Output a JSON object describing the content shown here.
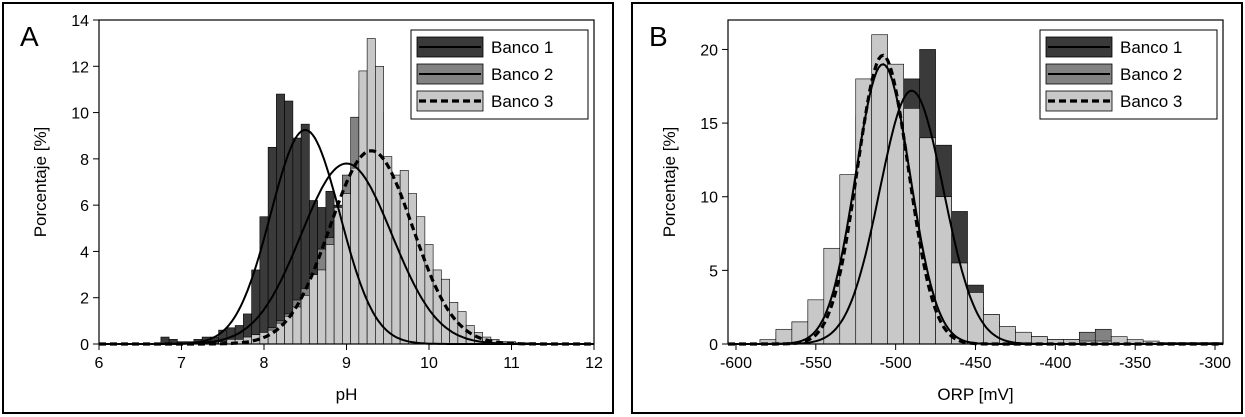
{
  "colors": {
    "bank1": "#3a3a3a",
    "bank2": "#828282",
    "bank3": "#c8c8c8",
    "edge": "#000000",
    "curve": "#000000"
  },
  "chart_data": [
    {
      "panel_label": "A",
      "type": "histogram",
      "xlabel": "pH",
      "ylabel": "Porcentaje [%]",
      "xlim": [
        6,
        12
      ],
      "ylim": [
        0,
        14
      ],
      "xticks": [
        6,
        7,
        8,
        9,
        10,
        11,
        12
      ],
      "yticks": [
        0,
        2,
        4,
        6,
        8,
        10,
        12,
        14
      ],
      "grid": false,
      "legend_position": "top-right",
      "bin_width": 0.1,
      "series": [
        {
          "name": "Banco 1",
          "color": "#3a3a3a",
          "line": "solid",
          "bins_x": [
            6.8,
            6.9,
            7.0,
            7.1,
            7.2,
            7.3,
            7.4,
            7.5,
            7.6,
            7.7,
            7.8,
            7.9,
            8.0,
            8.1,
            8.2,
            8.3,
            8.4,
            8.5,
            8.6,
            8.7,
            8.8,
            8.9,
            9.0,
            9.1,
            9.2,
            9.3,
            9.4,
            9.5,
            9.6,
            9.7,
            9.8,
            9.9,
            10.0
          ],
          "values": [
            0.3,
            0.2,
            0.1,
            0.1,
            0.2,
            0.3,
            0.3,
            0.6,
            0.7,
            0.8,
            1.3,
            3.2,
            5.5,
            8.5,
            10.8,
            10.5,
            8.9,
            9.5,
            6.2,
            5.9,
            6.6,
            6.0,
            5.5,
            4.0,
            3.8,
            2.0,
            1.5,
            1.0,
            0.5,
            0.3,
            0.2,
            0.1,
            0.1
          ],
          "fit": {
            "mean": 8.5,
            "peak": 9.25,
            "sd": 0.42
          }
        },
        {
          "name": "Banco 2",
          "color": "#828282",
          "line": "solid",
          "bins_x": [
            7.8,
            7.9,
            8.0,
            8.1,
            8.2,
            8.3,
            8.4,
            8.5,
            8.6,
            8.7,
            8.8,
            8.9,
            9.0,
            9.1,
            9.2,
            9.3,
            9.4,
            9.5,
            9.6,
            9.7,
            9.8,
            9.9,
            10.0,
            10.1,
            10.2,
            10.3
          ],
          "values": [
            0.2,
            0.3,
            0.5,
            0.7,
            1.0,
            1.3,
            1.9,
            2.4,
            3.0,
            4.1,
            4.6,
            5.8,
            7.3,
            9.8,
            11.0,
            10.5,
            10.0,
            7.5,
            6.5,
            4.0,
            3.0,
            2.0,
            1.2,
            0.6,
            0.3,
            0.1
          ],
          "fit": {
            "mean": 9.0,
            "peak": 7.8,
            "sd": 0.55
          }
        },
        {
          "name": "Banco 3",
          "color": "#c8c8c8",
          "line": "dashed",
          "bins_x": [
            7.5,
            7.6,
            7.7,
            7.8,
            7.9,
            8.0,
            8.1,
            8.2,
            8.3,
            8.4,
            8.5,
            8.6,
            8.7,
            8.8,
            8.9,
            9.0,
            9.1,
            9.2,
            9.3,
            9.4,
            9.5,
            9.6,
            9.7,
            9.8,
            9.9,
            10.0,
            10.1,
            10.2,
            10.3,
            10.4,
            10.5,
            10.6,
            10.7,
            10.8,
            10.9,
            11.0,
            11.1,
            11.2
          ],
          "values": [
            0.1,
            0.2,
            0.2,
            0.3,
            0.4,
            0.5,
            0.6,
            0.9,
            1.2,
            1.6,
            2.1,
            3.0,
            3.2,
            4.3,
            5.9,
            6.5,
            7.6,
            11.8,
            13.2,
            12.0,
            8.1,
            7.3,
            7.5,
            6.5,
            5.5,
            4.3,
            3.2,
            2.8,
            1.8,
            1.4,
            0.8,
            0.5,
            0.3,
            0.2,
            0.1,
            0.1,
            0.05,
            0.05
          ],
          "fit": {
            "mean": 9.3,
            "peak": 8.35,
            "sd": 0.5
          }
        }
      ]
    },
    {
      "panel_label": "B",
      "type": "histogram",
      "xlabel": "ORP [mV]",
      "ylabel": "Porcentaje [%]",
      "xlim": [
        -605,
        -295
      ],
      "ylim": [
        0,
        22
      ],
      "xticks": [
        -600,
        -550,
        -500,
        -450,
        -400,
        -350,
        -300
      ],
      "yticks": [
        0,
        5,
        10,
        15,
        20
      ],
      "grid": false,
      "legend_position": "top-right",
      "bin_width": 10,
      "series": [
        {
          "name": "Banco 1",
          "color": "#3a3a3a",
          "line": "solid",
          "bins_x": [
            -560,
            -550,
            -540,
            -530,
            -520,
            -510,
            -500,
            -490,
            -480,
            -470,
            -460,
            -450,
            -440,
            -430,
            -420,
            -410,
            -400
          ],
          "values": [
            0.5,
            1.0,
            2.0,
            4.0,
            7.5,
            11.5,
            16.0,
            18.0,
            20.0,
            13.5,
            9.0,
            4.0,
            2.0,
            1.0,
            0.7,
            0.5,
            0.3
          ],
          "fit": {
            "mean": -490,
            "peak": 17.2,
            "sd": 20
          }
        },
        {
          "name": "Banco 2",
          "color": "#828282",
          "line": "solid",
          "bins_x": [
            -570,
            -560,
            -550,
            -540,
            -530,
            -520,
            -510,
            -500,
            -490,
            -480,
            -470,
            -460,
            -450,
            -440,
            -430,
            -420,
            -410,
            -400,
            -390,
            -380,
            -370
          ],
          "values": [
            0.8,
            1.5,
            2.5,
            4.5,
            8.5,
            15.5,
            18.0,
            17.5,
            15.0,
            11.0,
            6.0,
            4.0,
            2.5,
            1.5,
            0.8,
            0.5,
            0.3,
            0.2,
            0.3,
            0.8,
            1.0
          ],
          "fit": {
            "mean": -508,
            "peak": 19.0,
            "sd": 17
          }
        },
        {
          "name": "Banco 3",
          "color": "#c8c8c8",
          "line": "dashed",
          "bins_x": [
            -580,
            -570,
            -560,
            -550,
            -540,
            -530,
            -520,
            -510,
            -500,
            -490,
            -480,
            -470,
            -460,
            -450,
            -440,
            -430,
            -420,
            -410,
            -400,
            -390,
            -380,
            -370,
            -360,
            -350,
            -340,
            -330,
            -320,
            -310,
            -300
          ],
          "values": [
            0.3,
            1.0,
            1.5,
            3.0,
            6.5,
            11.5,
            18.0,
            21.0,
            19.0,
            16.0,
            14.0,
            10.0,
            5.5,
            3.5,
            2.0,
            1.2,
            0.8,
            0.5,
            0.3,
            0.3,
            0.2,
            0.2,
            0.5,
            0.3,
            0.2,
            0.1,
            0.1,
            0.1,
            0.1
          ],
          "fit": {
            "mean": -508,
            "peak": 19.6,
            "sd": 16
          }
        }
      ]
    }
  ]
}
